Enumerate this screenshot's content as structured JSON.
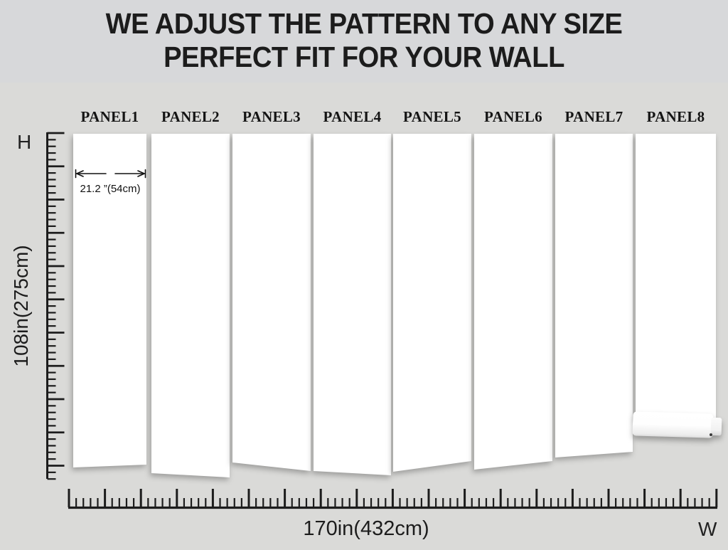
{
  "title": {
    "line1": "WE ADJUST THE PATTERN TO ANY SIZE",
    "line2": "PERFECT FIT FOR YOUR WALL"
  },
  "panels": {
    "labels": [
      "PANEL1",
      "PANEL2",
      "PANEL3",
      "PANEL4",
      "PANEL5",
      "PANEL6",
      "PANEL7",
      "PANEL8"
    ]
  },
  "annotation": {
    "panel_width": "21.2 ”(54cm)"
  },
  "axes": {
    "height_marker": "H",
    "width_marker": "W",
    "height_label": "108in(275cm)",
    "width_label": "170in(432cm)"
  },
  "colors": {
    "background": "#d9d9d9",
    "panel": "#ffffff",
    "ink": "#1c1c1c"
  }
}
